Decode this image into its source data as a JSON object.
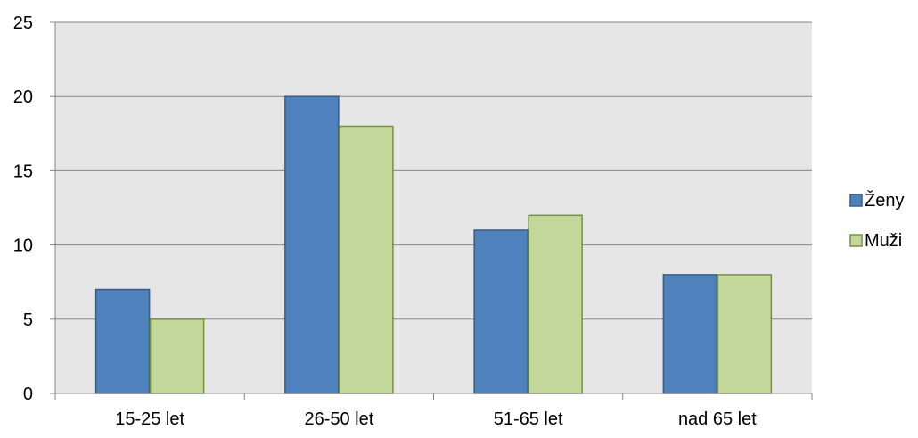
{
  "chart_data": {
    "type": "bar",
    "categories": [
      "15-25 let",
      "26-50 let",
      "51-65 let",
      "nad 65 let"
    ],
    "series": [
      {
        "name": "Ženy",
        "values": [
          7,
          20,
          11,
          8
        ],
        "color": "#4F81BD",
        "stroke": "#385D8A"
      },
      {
        "name": "Muži",
        "values": [
          5,
          18,
          12,
          8
        ],
        "color": "#C4D79B",
        "stroke": "#77933C"
      }
    ],
    "y_ticks": [
      0,
      5,
      10,
      15,
      20,
      25
    ],
    "ylim": [
      0,
      25
    ],
    "grid": true,
    "plot_background": "#E6E6E6",
    "legend_position": "right"
  }
}
